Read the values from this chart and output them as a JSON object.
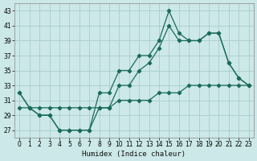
{
  "xlabel": "Humidex (Indice chaleur)",
  "bg_color": "#cce8e8",
  "grid_color": "#aacccc",
  "line_color": "#1a6b5a",
  "xlim": [
    -0.5,
    23.5
  ],
  "ylim": [
    26.0,
    44.0
  ],
  "xticks": [
    0,
    1,
    2,
    3,
    4,
    5,
    6,
    7,
    8,
    9,
    10,
    11,
    12,
    13,
    14,
    15,
    16,
    17,
    18,
    19,
    20,
    21,
    22,
    23
  ],
  "yticks": [
    27,
    29,
    31,
    33,
    35,
    37,
    39,
    41,
    43
  ],
  "series1_x": [
    0,
    1,
    2,
    3,
    4,
    5,
    6,
    7,
    8,
    9,
    10,
    11,
    12,
    13,
    14,
    15,
    16,
    17,
    18,
    19,
    20,
    21,
    22,
    23
  ],
  "series1_y": [
    32,
    30,
    29,
    29,
    27,
    27,
    27,
    27,
    32,
    32,
    35,
    35,
    37,
    37,
    39,
    43,
    40,
    39,
    39,
    40,
    40,
    36,
    34,
    33
  ],
  "series2_x": [
    0,
    1,
    2,
    3,
    4,
    5,
    6,
    7,
    8,
    9,
    10,
    11,
    12,
    13,
    14,
    15,
    16,
    17,
    18,
    19,
    20,
    21,
    22,
    23
  ],
  "series2_y": [
    32,
    30,
    29,
    29,
    27,
    27,
    27,
    27,
    30,
    30,
    33,
    33,
    35,
    36,
    38,
    41,
    39,
    39,
    39,
    40,
    40,
    36,
    34,
    33
  ],
  "series3_x": [
    0,
    1,
    2,
    3,
    4,
    5,
    6,
    7,
    8,
    9,
    10,
    11,
    12,
    13,
    14,
    15,
    16,
    17,
    18,
    19,
    20,
    21,
    22,
    23
  ],
  "series3_y": [
    30,
    30,
    30,
    30,
    30,
    30,
    30,
    30,
    30,
    30,
    31,
    31,
    31,
    31,
    32,
    32,
    32,
    33,
    33,
    33,
    33,
    33,
    33,
    33
  ]
}
